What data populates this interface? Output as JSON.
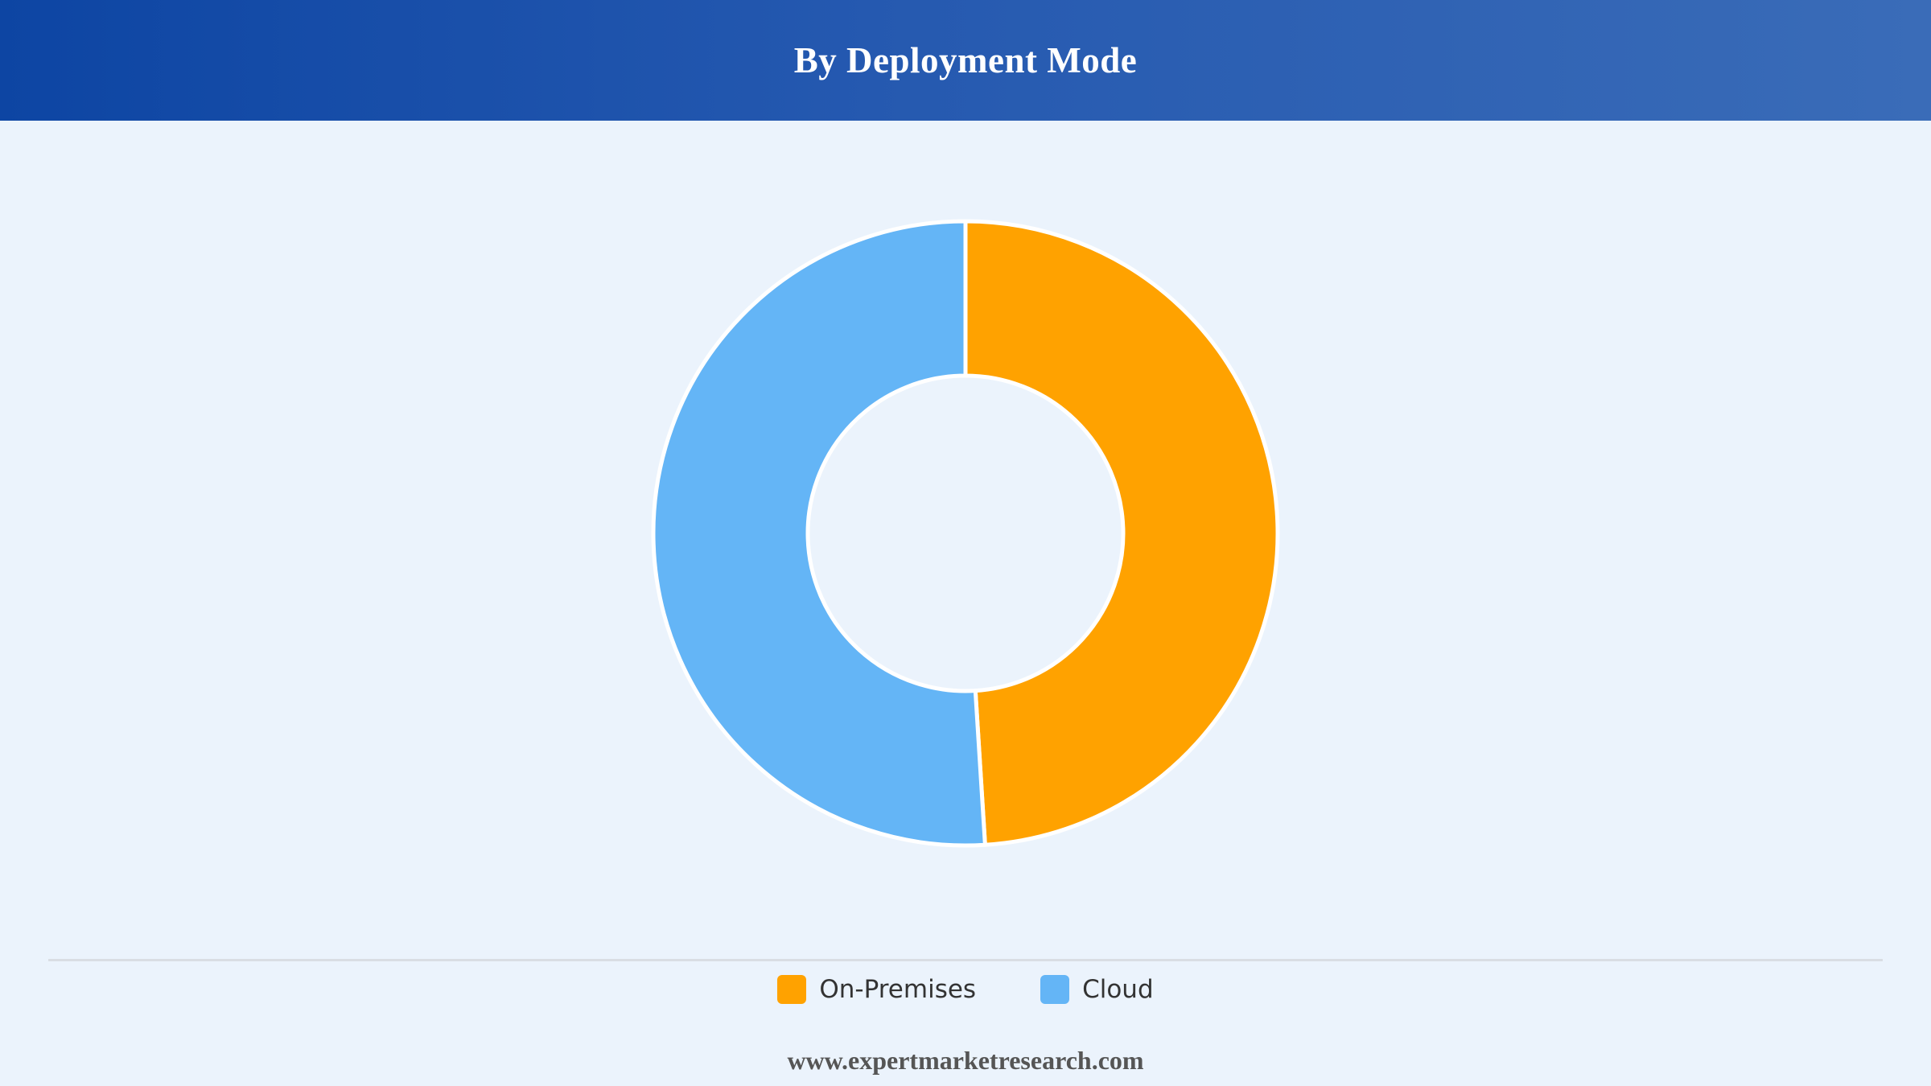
{
  "header": {
    "title": "By Deployment Mode"
  },
  "chart_data": {
    "type": "pie",
    "donut": true,
    "title": "By Deployment Mode",
    "categories": [
      "On-Premises",
      "Cloud"
    ],
    "values": [
      49,
      51
    ],
    "colors": [
      "#ffa200",
      "#64b5f6"
    ],
    "legend_position": "bottom"
  },
  "legend": {
    "items": [
      {
        "label": "On-Premises",
        "color": "#ffa200"
      },
      {
        "label": "Cloud",
        "color": "#64b5f6"
      }
    ]
  },
  "footer": {
    "source": "www.expertmarketresearch.com"
  }
}
